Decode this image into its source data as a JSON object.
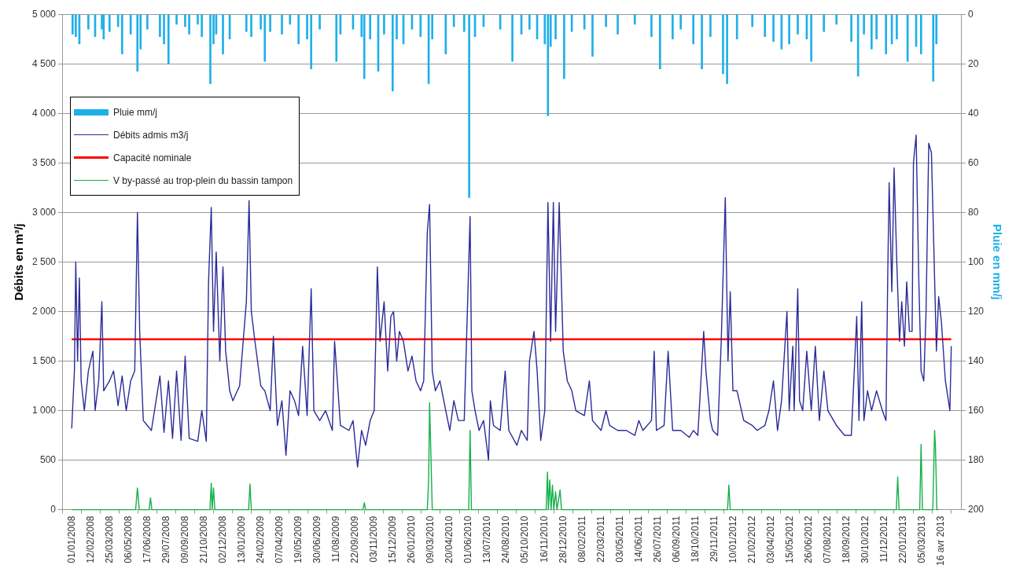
{
  "chart_data": {
    "type": "line",
    "ylabel": "Débits en m³/j",
    "y2label": "Pluie en mm/j",
    "xlim": [
      "2008-01-01",
      "2013-05-10"
    ],
    "xticks": [
      {
        "value": "2008-01-01",
        "label": "01/01/2008"
      },
      {
        "value": "2008-02-12",
        "label": "12/02/2008"
      },
      {
        "value": "2008-03-25",
        "label": "25/03/2008"
      },
      {
        "value": "2008-05-06",
        "label": "06/05/2008"
      },
      {
        "value": "2008-06-17",
        "label": "17/06/2008"
      },
      {
        "value": "2008-07-29",
        "label": "29/07/2008"
      },
      {
        "value": "2008-09-09",
        "label": "09/09/2008"
      },
      {
        "value": "2008-10-21",
        "label": "21/10/2008"
      },
      {
        "value": "2008-12-02",
        "label": "02/12/2008"
      },
      {
        "value": "2009-01-13",
        "label": "13/01/2009"
      },
      {
        "value": "2009-02-24",
        "label": "24/02/2009"
      },
      {
        "value": "2009-04-07",
        "label": "07/04/2009"
      },
      {
        "value": "2009-05-19",
        "label": "19/05/2009"
      },
      {
        "value": "2009-06-30",
        "label": "30/06/2009"
      },
      {
        "value": "2009-08-11",
        "label": "11/08/2009"
      },
      {
        "value": "2009-09-22",
        "label": "22/09/2009"
      },
      {
        "value": "2009-11-03",
        "label": "03/11/2009"
      },
      {
        "value": "2009-12-15",
        "label": "15/12/2009"
      },
      {
        "value": "2010-01-26",
        "label": "26/01/2010"
      },
      {
        "value": "2010-03-09",
        "label": "09/03/2010"
      },
      {
        "value": "2010-04-20",
        "label": "20/04/2010"
      },
      {
        "value": "2010-06-01",
        "label": "01/06/2010"
      },
      {
        "value": "2010-07-13",
        "label": "13/07/2010"
      },
      {
        "value": "2010-08-24",
        "label": "24/08/2010"
      },
      {
        "value": "2010-10-05",
        "label": "05/10/2010"
      },
      {
        "value": "2010-11-16",
        "label": "16/11/2010"
      },
      {
        "value": "2010-12-28",
        "label": "28/12/2010"
      },
      {
        "value": "2011-02-08",
        "label": "08/02/2011"
      },
      {
        "value": "2011-03-22",
        "label": "22/03/2011"
      },
      {
        "value": "2011-05-03",
        "label": "03/05/2011"
      },
      {
        "value": "2011-06-14",
        "label": "14/06/2011"
      },
      {
        "value": "2011-07-26",
        "label": "26/07/2011"
      },
      {
        "value": "2011-09-06",
        "label": "06/09/2011"
      },
      {
        "value": "2011-10-18",
        "label": "18/10/2011"
      },
      {
        "value": "2011-11-29",
        "label": "29/11/2011"
      },
      {
        "value": "2012-01-10",
        "label": "10/01/2012"
      },
      {
        "value": "2012-02-21",
        "label": "21/02/2012"
      },
      {
        "value": "2012-04-03",
        "label": "03/04/2012"
      },
      {
        "value": "2012-05-15",
        "label": "15/05/2012"
      },
      {
        "value": "2012-06-26",
        "label": "26/06/2012"
      },
      {
        "value": "2012-08-07",
        "label": "07/08/2012"
      },
      {
        "value": "2012-09-18",
        "label": "18/09/2012"
      },
      {
        "value": "2012-10-30",
        "label": "30/10/2012"
      },
      {
        "value": "2012-12-11",
        "label": "11/12/2012"
      },
      {
        "value": "2013-01-22",
        "label": "22/01/2013"
      },
      {
        "value": "2013-03-05",
        "label": "05/03/2013"
      },
      {
        "value": "2013-04-16",
        "label": "16 avr 2013"
      }
    ],
    "ylim": [
      0,
      5000
    ],
    "yticks": [
      0,
      500,
      {
        "value": 1000,
        "label": "1 000"
      },
      {
        "value": 1500,
        "label": "1 500"
      },
      {
        "value": 2000,
        "label": "2 000"
      },
      {
        "value": 2500,
        "label": "2 500"
      },
      {
        "value": 3000,
        "label": "3 000"
      },
      {
        "value": 3500,
        "label": "3 500"
      },
      {
        "value": 4000,
        "label": "4 000"
      },
      {
        "value": 4500,
        "label": "4 500"
      },
      {
        "value": 5000,
        "label": "5 000"
      }
    ],
    "y2lim": [
      200,
      0
    ],
    "y2ticks": [
      0,
      20,
      40,
      60,
      80,
      100,
      120,
      140,
      160,
      180,
      200
    ],
    "grid": "y",
    "legend": "top left",
    "series": [
      {
        "name": "Pluie mm/j",
        "type": "bar",
        "axis": "y2",
        "color": "#1fb0e8",
        "x": [
          "2008-01-03",
          "2008-01-10",
          "2008-01-18",
          "2008-02-07",
          "2008-02-22",
          "2008-03-08",
          "2008-03-12",
          "2008-03-25",
          "2008-04-13",
          "2008-04-22",
          "2008-05-11",
          "2008-05-26",
          "2008-06-02",
          "2008-06-17",
          "2008-07-15",
          "2008-07-24",
          "2008-08-03",
          "2008-08-21",
          "2008-09-09",
          "2008-09-18",
          "2008-10-07",
          "2008-10-16",
          "2008-11-04",
          "2008-11-11",
          "2008-11-17",
          "2008-12-02",
          "2008-12-17",
          "2009-01-23",
          "2009-02-03",
          "2009-02-24",
          "2009-03-05",
          "2009-03-17",
          "2009-04-12",
          "2009-04-30",
          "2009-05-19",
          "2009-06-07",
          "2009-06-16",
          "2009-07-05",
          "2009-08-11",
          "2009-08-20",
          "2009-09-17",
          "2009-10-06",
          "2009-10-12",
          "2009-10-25",
          "2009-11-12",
          "2009-11-25",
          "2009-12-14",
          "2009-12-23",
          "2010-01-07",
          "2010-01-26",
          "2010-02-14",
          "2010-03-04",
          "2010-03-12",
          "2010-04-11",
          "2010-04-29",
          "2010-05-22",
          "2010-06-02",
          "2010-06-15",
          "2010-07-04",
          "2010-08-10",
          "2010-09-06",
          "2010-09-26",
          "2010-10-14",
          "2010-10-31",
          "2010-11-17",
          "2010-11-24",
          "2010-11-30",
          "2010-12-11",
          "2010-12-30",
          "2011-01-16",
          "2011-02-13",
          "2011-03-03",
          "2011-04-02",
          "2011-04-28",
          "2011-06-05",
          "2011-07-12",
          "2011-07-31",
          "2011-08-28",
          "2011-09-15",
          "2011-10-13",
          "2011-11-01",
          "2011-11-20",
          "2011-12-18",
          "2011-12-27",
          "2012-01-18",
          "2012-02-21",
          "2012-03-20",
          "2012-04-08",
          "2012-04-26",
          "2012-05-13",
          "2012-06-01",
          "2012-06-21",
          "2012-07-01",
          "2012-07-29",
          "2012-08-26",
          "2012-09-28",
          "2012-10-13",
          "2012-10-26",
          "2012-11-12",
          "2012-11-23",
          "2012-12-14",
          "2012-12-27",
          "2013-01-07",
          "2013-01-31",
          "2013-02-19",
          "2013-03-02",
          "2013-03-29",
          "2013-04-05"
        ],
        "values": [
          8,
          9,
          12,
          6,
          9,
          6,
          10,
          7,
          5,
          16,
          8,
          23,
          14,
          6,
          9,
          12,
          20,
          4,
          5,
          8,
          4,
          9,
          28,
          12,
          8,
          16,
          10,
          7,
          9,
          6,
          19,
          7,
          8,
          4,
          12,
          10,
          22,
          6,
          19,
          8,
          6,
          9,
          26,
          10,
          23,
          8,
          31,
          10,
          12,
          6,
          9,
          28,
          10,
          16,
          5,
          7,
          74,
          9,
          5,
          6,
          19,
          8,
          6,
          10,
          12,
          41,
          13,
          10,
          26,
          7,
          6,
          17,
          5,
          8,
          4,
          9,
          22,
          10,
          6,
          12,
          22,
          9,
          24,
          28,
          10,
          5,
          9,
          11,
          14,
          12,
          8,
          10,
          19,
          7,
          4,
          11,
          25,
          8,
          14,
          10,
          16,
          12,
          10,
          19,
          13,
          16,
          27,
          12
        ]
      },
      {
        "name": "Débits admis m3/j",
        "color": "#2b2b9a",
        "x": [
          "2008-01-01",
          "2008-01-07",
          "2008-01-10",
          "2008-01-14",
          "2008-01-18",
          "2008-01-22",
          "2008-01-29",
          "2008-02-07",
          "2008-02-17",
          "2008-02-22",
          "2008-03-01",
          "2008-03-08",
          "2008-03-12",
          "2008-03-25",
          "2008-04-03",
          "2008-04-13",
          "2008-04-22",
          "2008-05-01",
          "2008-05-11",
          "2008-05-20",
          "2008-05-26",
          "2008-05-31",
          "2008-06-08",
          "2008-06-17",
          "2008-06-26",
          "2008-07-15",
          "2008-07-24",
          "2008-08-03",
          "2008-08-12",
          "2008-08-21",
          "2008-08-31",
          "2008-09-09",
          "2008-09-18",
          "2008-10-07",
          "2008-10-16",
          "2008-10-26",
          "2008-10-31",
          "2008-11-06",
          "2008-11-11",
          "2008-11-17",
          "2008-11-25",
          "2008-12-02",
          "2008-12-08",
          "2008-12-17",
          "2008-12-24",
          "2009-01-08",
          "2009-01-23",
          "2009-01-29",
          "2009-02-03",
          "2009-02-11",
          "2009-02-24",
          "2009-03-05",
          "2009-03-17",
          "2009-03-24",
          "2009-04-02",
          "2009-04-12",
          "2009-04-21",
          "2009-04-30",
          "2009-05-10",
          "2009-05-19",
          "2009-05-28",
          "2009-06-07",
          "2009-06-16",
          "2009-06-22",
          "2009-07-05",
          "2009-07-18",
          "2009-08-02",
          "2009-08-07",
          "2009-08-20",
          "2009-09-08",
          "2009-09-17",
          "2009-09-27",
          "2009-10-06",
          "2009-10-15",
          "2009-10-25",
          "2009-11-03",
          "2009-11-10",
          "2009-11-16",
          "2009-11-25",
          "2009-12-03",
          "2009-12-10",
          "2009-12-16",
          "2009-12-23",
          "2009-12-29",
          "2010-01-07",
          "2010-01-17",
          "2010-01-26",
          "2010-02-04",
          "2010-02-14",
          "2010-02-21",
          "2010-03-01",
          "2010-03-06",
          "2010-03-12",
          "2010-03-19",
          "2010-03-29",
          "2010-04-11",
          "2010-04-20",
          "2010-04-29",
          "2010-05-09",
          "2010-05-22",
          "2010-06-04",
          "2010-06-08",
          "2010-06-15",
          "2010-06-24",
          "2010-07-04",
          "2010-07-15",
          "2010-07-19",
          "2010-07-26",
          "2010-08-10",
          "2010-08-21",
          "2010-08-29",
          "2010-09-16",
          "2010-09-26",
          "2010-10-09",
          "2010-10-14",
          "2010-10-24",
          "2010-10-31",
          "2010-11-08",
          "2010-11-17",
          "2010-11-24",
          "2010-11-30",
          "2010-12-06",
          "2010-12-11",
          "2010-12-19",
          "2010-12-28",
          "2011-01-06",
          "2011-01-16",
          "2011-01-25",
          "2011-02-13",
          "2011-02-24",
          "2011-03-03",
          "2011-03-22",
          "2011-04-02",
          "2011-04-10",
          "2011-04-28",
          "2011-05-17",
          "2011-06-05",
          "2011-06-14",
          "2011-06-23",
          "2011-07-12",
          "2011-07-18",
          "2011-07-23",
          "2011-08-09",
          "2011-08-18",
          "2011-08-28",
          "2011-09-15",
          "2011-10-04",
          "2011-10-13",
          "2011-10-23",
          "2011-11-05",
          "2011-11-10",
          "2011-11-20",
          "2011-11-25",
          "2011-12-06",
          "2011-12-14",
          "2011-12-23",
          "2011-12-29",
          "2012-01-03",
          "2012-01-09",
          "2012-01-18",
          "2012-02-02",
          "2012-02-21",
          "2012-03-03",
          "2012-03-20",
          "2012-03-29",
          "2012-04-08",
          "2012-04-17",
          "2012-04-26",
          "2012-05-08",
          "2012-05-13",
          "2012-05-21",
          "2012-05-24",
          "2012-06-01",
          "2012-06-05",
          "2012-06-12",
          "2012-06-21",
          "2012-07-01",
          "2012-07-10",
          "2012-07-19",
          "2012-07-29",
          "2012-08-07",
          "2012-08-26",
          "2012-09-13",
          "2012-09-28",
          "2012-10-10",
          "2012-10-15",
          "2012-10-21",
          "2012-10-26",
          "2012-11-03",
          "2012-11-12",
          "2012-11-23",
          "2012-12-06",
          "2012-12-14",
          "2012-12-18",
          "2012-12-21",
          "2012-12-27",
          "2013-01-01",
          "2013-01-07",
          "2013-01-13",
          "2013-01-18",
          "2013-01-24",
          "2013-01-29",
          "2013-02-04",
          "2013-02-10",
          "2013-02-13",
          "2013-02-19",
          "2013-02-25",
          "2013-03-02",
          "2013-03-08",
          "2013-03-13",
          "2013-03-19",
          "2013-03-25",
          "2013-03-30",
          "2013-04-05",
          "2013-04-10",
          "2013-04-16",
          "2013-04-25",
          "2013-05-05",
          "2013-05-08"
        ],
        "values": [
          820,
          1400,
          2500,
          1500,
          2340,
          1300,
          1000,
          1400,
          1600,
          1000,
          1300,
          2100,
          1200,
          1300,
          1400,
          1050,
          1350,
          1000,
          1300,
          1400,
          3000,
          1800,
          900,
          850,
          800,
          1350,
          780,
          1300,
          720,
          1400,
          700,
          1550,
          720,
          690,
          1000,
          690,
          2300,
          3050,
          1800,
          2600,
          1500,
          2450,
          1600,
          1200,
          1100,
          1250,
          2100,
          3120,
          2000,
          1700,
          1250,
          1200,
          1000,
          1750,
          850,
          1100,
          550,
          1200,
          1100,
          950,
          1650,
          950,
          2230,
          1000,
          900,
          1000,
          800,
          1700,
          850,
          800,
          900,
          430,
          800,
          650,
          900,
          1000,
          2450,
          1700,
          2100,
          1400,
          1950,
          2000,
          1500,
          1800,
          1700,
          1400,
          1550,
          1300,
          1200,
          1300,
          2800,
          3080,
          1400,
          1200,
          1300,
          1000,
          800,
          1100,
          900,
          900,
          2960,
          1200,
          1000,
          800,
          900,
          500,
          1100,
          850,
          800,
          1400,
          800,
          650,
          800,
          700,
          1500,
          1800,
          1400,
          700,
          1000,
          3100,
          1700,
          3100,
          1800,
          3100,
          1600,
          1300,
          1200,
          1000,
          950,
          1300,
          900,
          800,
          1000,
          850,
          800,
          800,
          750,
          900,
          800,
          900,
          1600,
          800,
          850,
          1600,
          800,
          800,
          730,
          800,
          750,
          1800,
          1400,
          900,
          800,
          750,
          1700,
          3150,
          1500,
          2200,
          1200,
          1200,
          900,
          850,
          800,
          850,
          1000,
          1300,
          800,
          1100,
          2000,
          1000,
          1650,
          1000,
          2230,
          1100,
          1000,
          1600,
          1000,
          1650,
          900,
          1400,
          1000,
          850,
          750,
          750,
          1950,
          900,
          2100,
          900,
          1200,
          1000,
          1200,
          1000,
          900,
          2400,
          3300,
          2200,
          3450,
          2500,
          1700,
          2100,
          1650,
          2300,
          1800,
          1800,
          3500,
          3780,
          2300,
          1400,
          1300,
          2000,
          3700,
          3600,
          2700,
          1600,
          2150,
          1900,
          1300,
          1000,
          1650
        ]
      },
      {
        "name": "Capacité nominale",
        "color": "#ff0000",
        "x": [
          "2008-01-01",
          "2013-05-08"
        ],
        "values": [
          1720,
          1720
        ]
      },
      {
        "name": "V by-passé au trop-plein du bassin tampon",
        "color": "#14b04a",
        "x": [
          "2008-01-01",
          "2008-05-22",
          "2008-05-26",
          "2008-05-30",
          "2008-06-21",
          "2008-06-24",
          "2008-06-27",
          "2008-11-03",
          "2008-11-06",
          "2008-11-08",
          "2008-11-11",
          "2008-11-14",
          "2009-01-28",
          "2009-01-31",
          "2009-02-03",
          "2009-10-09",
          "2009-10-12",
          "2009-10-15",
          "2010-03-01",
          "2010-03-04",
          "2010-03-06",
          "2010-03-09",
          "2010-03-12",
          "2010-06-01",
          "2010-06-04",
          "2010-06-07",
          "2010-11-20",
          "2010-11-23",
          "2010-11-25",
          "2010-11-28",
          "2010-12-01",
          "2010-12-04",
          "2010-12-07",
          "2010-12-11",
          "2010-12-14",
          "2010-12-21",
          "2010-12-24",
          "2011-12-28",
          "2011-12-31",
          "2012-01-03",
          "2013-01-06",
          "2013-01-09",
          "2013-01-12",
          "2013-02-27",
          "2013-03-02",
          "2013-03-05",
          "2013-03-28",
          "2013-04-01",
          "2013-04-03",
          "2013-04-06",
          "2013-04-10"
        ],
        "values": [
          0,
          0,
          220,
          0,
          0,
          120,
          0,
          0,
          270,
          0,
          220,
          0,
          0,
          260,
          0,
          0,
          70,
          0,
          0,
          300,
          1080,
          550,
          0,
          0,
          800,
          0,
          0,
          380,
          0,
          300,
          0,
          250,
          0,
          180,
          0,
          200,
          0,
          0,
          250,
          0,
          0,
          330,
          0,
          0,
          660,
          0,
          0,
          800,
          630,
          0,
          0
        ]
      }
    ]
  }
}
